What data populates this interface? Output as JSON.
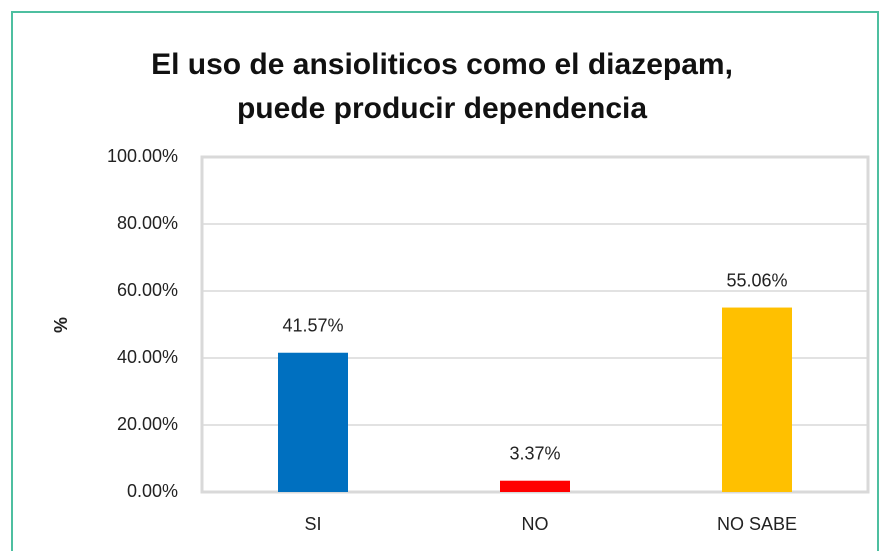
{
  "chart_data": {
    "type": "bar",
    "title": [
      "El uso de ansioliticos como el diazepam,",
      "puede producir dependencia"
    ],
    "y_label": "%",
    "categories": [
      "SI",
      "NO",
      "NO SABE"
    ],
    "values": [
      41.57,
      3.37,
      55.06
    ],
    "value_labels": [
      "41.57%",
      "3.37%",
      "55.06%"
    ],
    "colors": [
      "#0070c0",
      "#ff0000",
      "#ffc000"
    ],
    "ylim": [
      0,
      100
    ],
    "yticks": [
      {
        "value": 0,
        "label": "0.00%"
      },
      {
        "value": 20,
        "label": "20.00%"
      },
      {
        "value": 40,
        "label": "40.00%"
      },
      {
        "value": 60,
        "label": "60.00%"
      },
      {
        "value": 80,
        "label": "80.00%"
      },
      {
        "value": 100,
        "label": "100.00%"
      }
    ],
    "grid": true
  }
}
